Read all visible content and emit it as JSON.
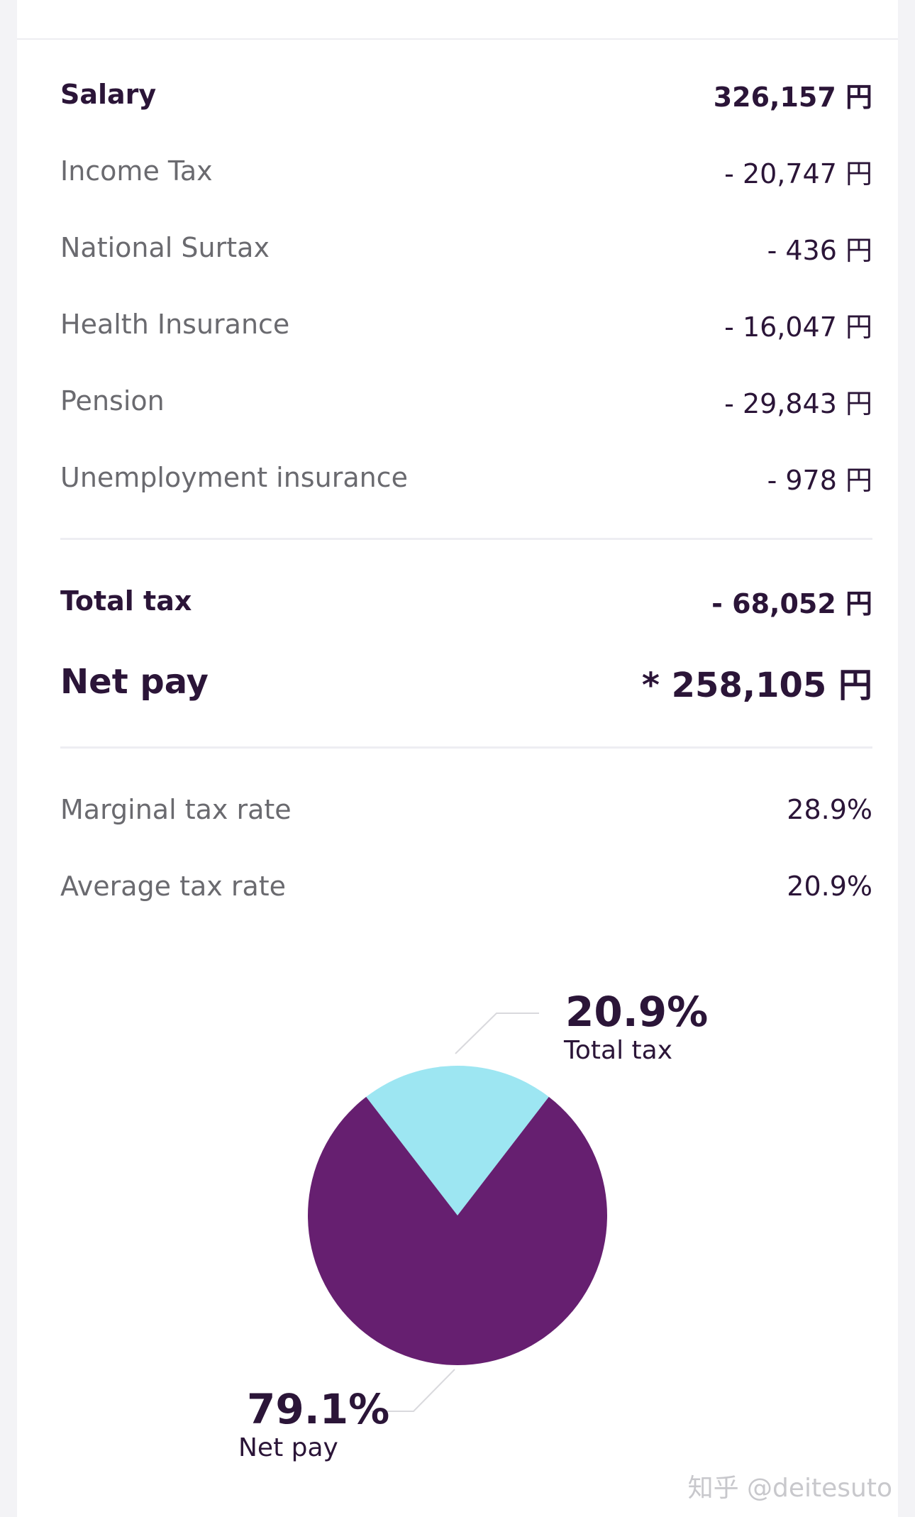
{
  "breakdown": {
    "rows": [
      {
        "label": "Salary",
        "value": "326,157 円"
      },
      {
        "label": "Income Tax",
        "value": "- 20,747 円"
      },
      {
        "label": "National Surtax",
        "value": "- 436 円"
      },
      {
        "label": "Health Insurance",
        "value": "- 16,047 円"
      },
      {
        "label": "Pension",
        "value": "- 29,843 円"
      },
      {
        "label": "Unemployment insurance",
        "value": "- 978 円"
      }
    ]
  },
  "totals": {
    "total_tax_label": "Total tax",
    "total_tax_value": "- 68,052 円",
    "net_pay_label": "Net pay",
    "net_pay_value": "* 258,105 円"
  },
  "rates": {
    "marginal_label": "Marginal tax rate",
    "marginal_value": "28.9%",
    "average_label": "Average tax rate",
    "average_value": "20.9%"
  },
  "chart_data": {
    "type": "pie",
    "slices": [
      {
        "name": "Total tax",
        "value": 20.9,
        "label": "20.9%",
        "color": "#9de6f2"
      },
      {
        "name": "Net pay",
        "value": 79.1,
        "label": "79.1%",
        "color": "#661f70"
      }
    ]
  },
  "watermark": "知乎 @deitesuto"
}
